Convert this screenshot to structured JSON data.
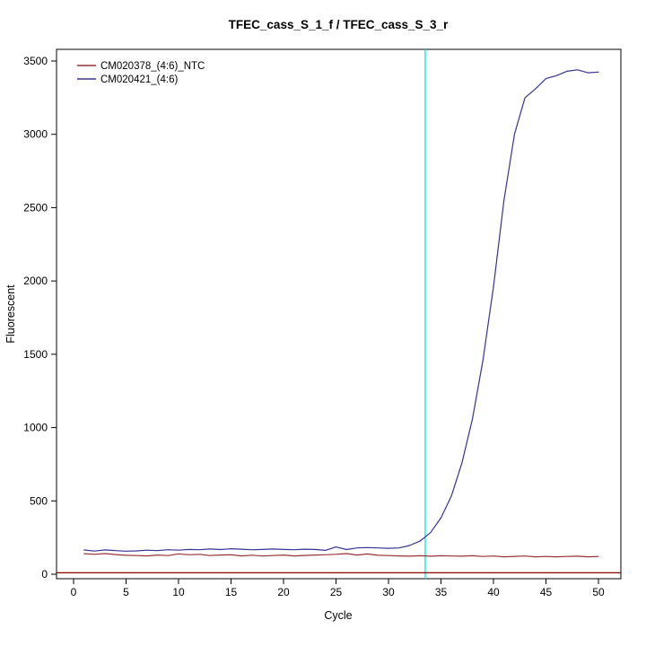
{
  "chart_data": {
    "type": "line",
    "title": "TFEC_cass_S_1_f / TFEC_cass_S_3_r",
    "xlabel": "Cycle",
    "ylabel": "Fluorescent",
    "grid": false,
    "x_ticks": [
      0,
      5,
      10,
      15,
      20,
      25,
      30,
      35,
      40,
      45,
      50
    ],
    "y_ticks": [
      0,
      500,
      1000,
      1500,
      2000,
      2500,
      3000,
      3500
    ],
    "xlim": [
      -1.6,
      52.1
    ],
    "ylim": [
      -31,
      3580
    ],
    "frame_color": "#000000",
    "threshold_cycle_line": {
      "orientation": "vertical",
      "x": 33.5,
      "color": "#00EEEE"
    },
    "baseline_line": {
      "orientation": "horizontal",
      "y": 10,
      "color": "#8B0000"
    },
    "legend": {
      "position": "top-left",
      "entries": [
        {
          "label": "CM020378_(4:6)_NTC",
          "color": "#993333"
        },
        {
          "label": "CM020421_(4:6)",
          "color": "#333399"
        }
      ]
    },
    "x": [
      1,
      2,
      3,
      4,
      5,
      6,
      7,
      8,
      9,
      10,
      11,
      12,
      13,
      14,
      15,
      16,
      17,
      18,
      19,
      20,
      21,
      22,
      23,
      24,
      25,
      26,
      27,
      28,
      29,
      30,
      31,
      32,
      33,
      34,
      35,
      36,
      37,
      38,
      39,
      40,
      41,
      42,
      43,
      44,
      45,
      46,
      47,
      48,
      49,
      50
    ],
    "series": [
      {
        "name": "CM020378_(4:6)_NTC",
        "color": "#993333",
        "values": [
          140,
          136,
          141,
          134,
          129,
          127,
          125,
          131,
          127,
          139,
          133,
          136,
          127,
          131,
          133,
          125,
          130,
          124,
          127,
          131,
          125,
          128,
          131,
          133,
          136,
          141,
          131,
          138,
          129,
          127,
          125,
          123,
          126,
          123,
          126,
          124,
          123,
          126,
          121,
          124,
          119,
          122,
          124,
          119,
          121,
          119,
          121,
          123,
          119,
          121
        ]
      },
      {
        "name": "CM020421_(4:6)",
        "color": "#333399",
        "values": [
          165,
          158,
          166,
          161,
          157,
          159,
          164,
          161,
          167,
          164,
          169,
          167,
          172,
          168,
          174,
          171,
          167,
          169,
          172,
          169,
          167,
          171,
          169,
          163,
          186,
          168,
          179,
          182,
          179,
          177,
          179,
          196,
          226,
          283,
          385,
          535,
          760,
          1060,
          1460,
          1960,
          2550,
          3000,
          3250,
          3310,
          3380,
          3400,
          3430,
          3440,
          3420,
          3425
        ]
      }
    ]
  }
}
